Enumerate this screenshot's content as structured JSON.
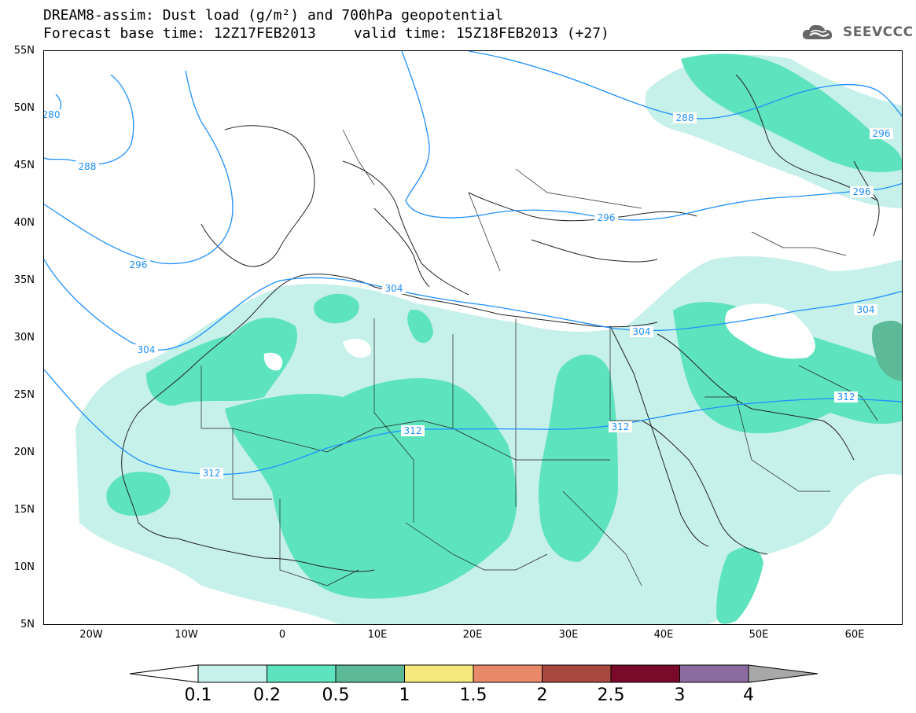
{
  "title": {
    "line1": "DREAM8-assim: Dust load (g/m²) and 700hPa geopotential",
    "line2_base": "Forecast base time: 12Z17FEB2013",
    "line2_valid": "valid time: 15Z18FEB2013 (+27)"
  },
  "brand": {
    "name": "SEEVCCC",
    "icon": "cloud-logo-icon"
  },
  "map": {
    "region": {
      "lon_min": -25,
      "lon_max": 65,
      "lat_min": 5,
      "lat_max": 55
    },
    "lat_ticks": [
      "55N",
      "50N",
      "45N",
      "40N",
      "35N",
      "30N",
      "25N",
      "20N",
      "15N",
      "10N",
      "5N"
    ],
    "lon_ticks": [
      "20W",
      "10W",
      "0",
      "10E",
      "20E",
      "30E",
      "40E",
      "50E",
      "60E"
    ],
    "contour_color": "#1e90ff",
    "contours": [
      {
        "label": "280",
        "level": 280
      },
      {
        "label": "288",
        "level": 288
      },
      {
        "label": "296",
        "level": 296
      },
      {
        "label": "304",
        "level": 304
      },
      {
        "label": "312",
        "level": 312
      }
    ]
  },
  "colorbar": {
    "labels": [
      "0.1",
      "0.2",
      "0.5",
      "1",
      "1.5",
      "2",
      "2.5",
      "3",
      "4"
    ],
    "colors": [
      "#c6f0ea",
      "#5de3bd",
      "#5cba98",
      "#f4e97a",
      "#e8896a",
      "#a8483e",
      "#7a0a2a",
      "#8c6ba0",
      "#a8a8a8"
    ],
    "units": "g/m²"
  }
}
